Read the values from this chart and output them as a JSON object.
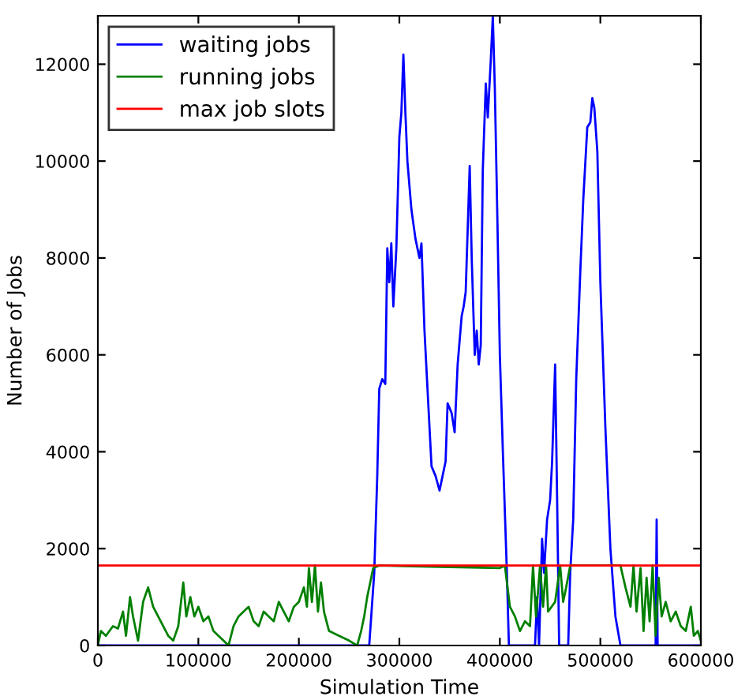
{
  "chart_data": {
    "type": "line",
    "xlabel": "Simulation Time",
    "ylabel": "Number of Jobs",
    "xlim": [
      0,
      600000
    ],
    "ylim": [
      0,
      13000
    ],
    "xticks": [
      0,
      100000,
      200000,
      300000,
      400000,
      500000,
      600000
    ],
    "yticks": [
      0,
      2000,
      4000,
      6000,
      8000,
      10000,
      12000
    ],
    "grid": false,
    "legend": "top left",
    "marker": "none",
    "line_style": "solid",
    "series": [
      {
        "name": "waiting jobs",
        "color": "#0000ff",
        "x": [
          0,
          270000,
          275000,
          278000,
          280000,
          283000,
          286000,
          288000,
          290000,
          292000,
          294000,
          297000,
          300000,
          302000,
          304000,
          306000,
          308000,
          312000,
          316000,
          320000,
          322000,
          325000,
          330000,
          332000,
          336000,
          340000,
          343000,
          346000,
          348000,
          352000,
          355000,
          358000,
          362000,
          364000,
          366000,
          370000,
          372000,
          375000,
          377000,
          379000,
          381000,
          383000,
          386000,
          388000,
          391000,
          393000,
          395000,
          397000,
          400000,
          403000,
          407000,
          409000,
          435000,
          437000,
          439000,
          442000,
          444000,
          447000,
          450000,
          452000,
          455000,
          457000,
          459000,
          468000,
          470000,
          473000,
          476000,
          480000,
          483000,
          487000,
          490000,
          492000,
          494000,
          497000,
          500000,
          505000,
          510000,
          515000,
          520000,
          555000,
          556000,
          557000,
          600000
        ],
        "values": [
          0,
          0,
          1500,
          3500,
          5300,
          5500,
          5400,
          8200,
          7500,
          8300,
          7000,
          8200,
          10500,
          11000,
          12200,
          11000,
          10000,
          9000,
          8400,
          8000,
          8300,
          6500,
          4500,
          3700,
          3500,
          3200,
          3500,
          3800,
          5000,
          4800,
          4400,
          5800,
          6800,
          7000,
          7300,
          9900,
          8000,
          6000,
          6500,
          5800,
          6200,
          9800,
          11600,
          10900,
          12100,
          13000,
          11500,
          9400,
          6000,
          4000,
          1500,
          0,
          0,
          1000,
          0,
          2200,
          1500,
          2600,
          3000,
          3800,
          5800,
          3000,
          0,
          0,
          1500,
          2600,
          5500,
          7700,
          9200,
          10700,
          10800,
          11300,
          11100,
          10200,
          7500,
          4500,
          2000,
          600,
          0,
          0,
          2600,
          0,
          0
        ]
      },
      {
        "name": "running jobs",
        "color": "#008000",
        "x": [
          0,
          3000,
          8000,
          15000,
          20000,
          25000,
          28000,
          32000,
          35000,
          40000,
          45000,
          50000,
          55000,
          60000,
          65000,
          70000,
          75000,
          80000,
          85000,
          88000,
          92000,
          96000,
          100000,
          105000,
          110000,
          115000,
          120000,
          125000,
          130000,
          135000,
          140000,
          145000,
          150000,
          155000,
          160000,
          165000,
          170000,
          175000,
          180000,
          185000,
          190000,
          195000,
          200000,
          205000,
          208000,
          210000,
          213000,
          216000,
          219000,
          222000,
          225000,
          230000,
          240000,
          250000,
          258000,
          262000,
          265000,
          268000,
          271000,
          274000,
          280000,
          400000,
          405000,
          410000,
          415000,
          420000,
          425000,
          430000,
          433000,
          436000,
          440000,
          443000,
          446000,
          448000,
          455000,
          460000,
          463000,
          466000,
          470000,
          520000,
          525000,
          530000,
          533000,
          536000,
          540000,
          543000,
          546000,
          549000,
          552000,
          555000,
          558000,
          561000,
          565000,
          570000,
          575000,
          580000,
          585000,
          590000,
          593000,
          597000,
          600000
        ],
        "values": [
          0,
          300,
          200,
          400,
          350,
          700,
          200,
          1000,
          600,
          100,
          900,
          1200,
          800,
          600,
          400,
          200,
          100,
          400,
          1300,
          600,
          1000,
          600,
          800,
          500,
          600,
          300,
          200,
          100,
          0,
          400,
          600,
          700,
          800,
          500,
          400,
          700,
          600,
          500,
          900,
          700,
          500,
          800,
          900,
          1200,
          800,
          1600,
          900,
          1650,
          700,
          1300,
          700,
          300,
          200,
          100,
          0,
          300,
          600,
          1000,
          1300,
          1600,
          1650,
          1600,
          1650,
          800,
          600,
          300,
          500,
          400,
          1650,
          600,
          1650,
          800,
          1650,
          700,
          900,
          1650,
          900,
          1200,
          1650,
          1650,
          1200,
          800,
          1650,
          700,
          1600,
          300,
          1400,
          500,
          1650,
          200,
          1400,
          600,
          900,
          500,
          700,
          400,
          300,
          800,
          200,
          300,
          100
        ]
      }
    ],
    "ref_lines": [
      {
        "axis": "y",
        "value": 1650,
        "label": "max job slots",
        "color": "#ff0000",
        "line_style": "solid"
      }
    ]
  }
}
